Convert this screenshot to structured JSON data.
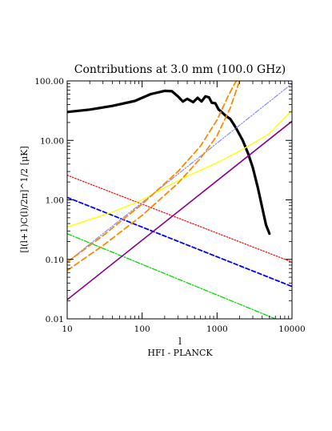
{
  "chart_data": {
    "type": "line",
    "title": "Contributions at 3.0 mm (100.0 GHz)",
    "xlabel": "l",
    "xlabel_sub": "HFI - PLANCK",
    "ylabel": "[l(l+1)C(l)/2π]^1/2 [μK]",
    "xscale": "log",
    "yscale": "log",
    "xlim": [
      10,
      10000
    ],
    "ylim": [
      0.01,
      100
    ],
    "x_ticks": [
      {
        "v": 10,
        "label": "10"
      },
      {
        "v": 100,
        "label": "100"
      },
      {
        "v": 1000,
        "label": "1000"
      },
      {
        "v": 10000,
        "label": "10000"
      }
    ],
    "y_ticks": [
      {
        "v": 0.01,
        "label": "0.01"
      },
      {
        "v": 0.1,
        "label": "0.10"
      },
      {
        "v": 1,
        "label": "1.00"
      },
      {
        "v": 10,
        "label": "10.00"
      },
      {
        "v": 100,
        "label": "100.00"
      }
    ],
    "grid": false,
    "series": [
      {
        "color": "#000000",
        "dash": "",
        "width": 3.2,
        "x": [
          10,
          20,
          40,
          80,
          130,
          200,
          250,
          300,
          350,
          400,
          480,
          550,
          620,
          700,
          780,
          850,
          950,
          1050,
          1150,
          1300,
          1500,
          1800,
          2200,
          2600,
          3000,
          3500,
          4000,
          4500,
          5000
        ],
        "y": [
          30,
          33,
          38,
          46,
          60,
          68,
          67,
          55,
          45,
          50,
          44,
          52,
          45,
          55,
          53,
          43,
          42,
          33,
          30,
          26,
          23,
          16,
          10,
          6,
          3.5,
          1.6,
          0.75,
          0.38,
          0.27
        ]
      },
      {
        "color": "#ff0000",
        "dash": "1.5 2",
        "width": 1.2,
        "x": [
          10,
          10000
        ],
        "y": [
          2.6,
          0.09
        ]
      },
      {
        "color": "#0000ff",
        "dash": "5 3",
        "width": 1.8,
        "x": [
          10,
          10000
        ],
        "y": [
          1.1,
          0.035
        ]
      },
      {
        "color": "#00dd00",
        "dash": "6 2 1.5 2",
        "width": 1.3,
        "x": [
          10,
          6000
        ],
        "y": [
          0.27,
          0.01
        ]
      },
      {
        "color": "#880088",
        "dash": "",
        "width": 1.6,
        "x": [
          10,
          10000
        ],
        "y": [
          0.021,
          21
        ]
      },
      {
        "color": "#ffff00",
        "dash": "",
        "width": 1.4,
        "x": [
          10,
          40,
          100,
          200,
          400,
          1000,
          2000,
          5000,
          10000
        ],
        "y": [
          0.35,
          0.62,
          1.0,
          1.6,
          2.5,
          4.2,
          6.6,
          13,
          32
        ]
      },
      {
        "color": "#8888ff",
        "dash": "6 2 1.5 2 1.5 2",
        "width": 1.2,
        "x": [
          10,
          10000
        ],
        "y": [
          0.09,
          90
        ]
      },
      {
        "color": "#ff8800",
        "dash": "7 4",
        "width": 1.8,
        "x": [
          10,
          30,
          100,
          300,
          600,
          1000,
          1400,
          1800
        ],
        "y": [
          0.09,
          0.25,
          0.85,
          3.0,
          8.0,
          22,
          55,
          100
        ]
      },
      {
        "color": "#ff8800",
        "dash": "7 4",
        "width": 1.8,
        "x": [
          10,
          30,
          100,
          300,
          600,
          1000,
          1500,
          2000
        ],
        "y": [
          0.065,
          0.17,
          0.55,
          1.9,
          5.0,
          12,
          35,
          100
        ]
      }
    ]
  }
}
